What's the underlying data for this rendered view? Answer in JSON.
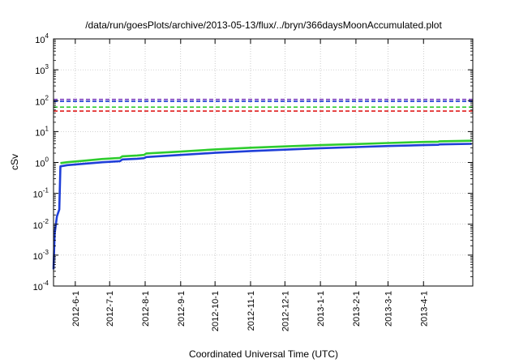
{
  "chart_data": {
    "type": "line",
    "title": "/data/run/goesPlots/archive/2013-05-13/flux/../bryn/366daysMoonAccumulated.plot",
    "xlabel": "Coordinated Universal Time (UTC)",
    "ylabel": "cSv",
    "yscale": "log",
    "ylim": [
      0.0001,
      10000
    ],
    "xlim": [
      "2012-05-13",
      "2013-05-14"
    ],
    "grid": true,
    "y_tick_labels": [
      {
        "base": "10",
        "exp": "-4",
        "value": 0.0001
      },
      {
        "base": "10",
        "exp": "-3",
        "value": 0.001
      },
      {
        "base": "10",
        "exp": "-2",
        "value": 0.01
      },
      {
        "base": "10",
        "exp": "-1",
        "value": 0.1
      },
      {
        "base": "10",
        "exp": "0",
        "value": 1
      },
      {
        "base": "10",
        "exp": "1",
        "value": 10
      },
      {
        "base": "10",
        "exp": "2",
        "value": 100
      },
      {
        "base": "10",
        "exp": "3",
        "value": 1000
      },
      {
        "base": "10",
        "exp": "4",
        "value": 10000
      }
    ],
    "x_ticks": [
      {
        "label": "2012-6-1",
        "date": "2012-06-01"
      },
      {
        "label": "2012-7-1",
        "date": "2012-07-01"
      },
      {
        "label": "2012-8-1",
        "date": "2012-08-01"
      },
      {
        "label": "2012-9-1",
        "date": "2012-09-01"
      },
      {
        "label": "2012-10-1",
        "date": "2012-10-01"
      },
      {
        "label": "2012-11-1",
        "date": "2012-11-01"
      },
      {
        "label": "2012-12-1",
        "date": "2012-12-01"
      },
      {
        "label": "2013-1-1",
        "date": "2013-01-01"
      },
      {
        "label": "2013-2-1",
        "date": "2013-02-01"
      },
      {
        "label": "2013-3-1",
        "date": "2013-03-01"
      },
      {
        "label": "2013-4-1",
        "date": "2013-04-01"
      }
    ],
    "reference_lines": [
      {
        "color": "#7b3fbf",
        "y": 110,
        "dash": true
      },
      {
        "color": "#1f3fd8",
        "y": 95,
        "dash": true
      },
      {
        "color": "#2ecc2e",
        "y": 62,
        "dash": true
      },
      {
        "color": "#e01b1b",
        "y": 46,
        "dash": true
      }
    ],
    "series": [
      {
        "color": "#2ecc2e",
        "points": [
          [
            "2012-05-19",
            0.95
          ],
          [
            "2012-05-25",
            1.02
          ],
          [
            "2012-06-10",
            1.15
          ],
          [
            "2012-06-25",
            1.3
          ],
          [
            "2012-07-10",
            1.4
          ],
          [
            "2012-07-12",
            1.58
          ],
          [
            "2012-07-25",
            1.68
          ],
          [
            "2012-07-31",
            1.75
          ],
          [
            "2012-08-02",
            1.95
          ],
          [
            "2012-09-01",
            2.25
          ],
          [
            "2012-10-01",
            2.65
          ],
          [
            "2012-11-01",
            3.0
          ],
          [
            "2012-12-01",
            3.3
          ],
          [
            "2013-01-01",
            3.65
          ],
          [
            "2013-02-01",
            3.95
          ],
          [
            "2013-03-01",
            4.25
          ],
          [
            "2013-04-01",
            4.6
          ],
          [
            "2013-04-14",
            4.7
          ],
          [
            "2013-04-15",
            4.85
          ],
          [
            "2013-05-13",
            5.05
          ]
        ]
      },
      {
        "color": "#1f3fd8",
        "points": [
          [
            "2012-05-13",
            0.00035
          ],
          [
            "2012-05-14",
            0.005
          ],
          [
            "2012-05-16",
            0.018
          ],
          [
            "2012-05-18",
            0.03
          ],
          [
            "2012-05-19",
            0.75
          ],
          [
            "2012-05-25",
            0.82
          ],
          [
            "2012-06-10",
            0.92
          ],
          [
            "2012-06-25",
            1.02
          ],
          [
            "2012-07-10",
            1.1
          ],
          [
            "2012-07-12",
            1.25
          ],
          [
            "2012-07-25",
            1.32
          ],
          [
            "2012-07-31",
            1.38
          ],
          [
            "2012-08-02",
            1.5
          ],
          [
            "2012-09-01",
            1.75
          ],
          [
            "2012-10-01",
            2.05
          ],
          [
            "2012-11-01",
            2.35
          ],
          [
            "2012-12-01",
            2.6
          ],
          [
            "2013-01-01",
            2.9
          ],
          [
            "2013-02-01",
            3.15
          ],
          [
            "2013-03-01",
            3.4
          ],
          [
            "2013-04-01",
            3.65
          ],
          [
            "2013-04-14",
            3.72
          ],
          [
            "2013-04-15",
            3.85
          ],
          [
            "2013-05-13",
            4.0
          ]
        ]
      }
    ]
  }
}
